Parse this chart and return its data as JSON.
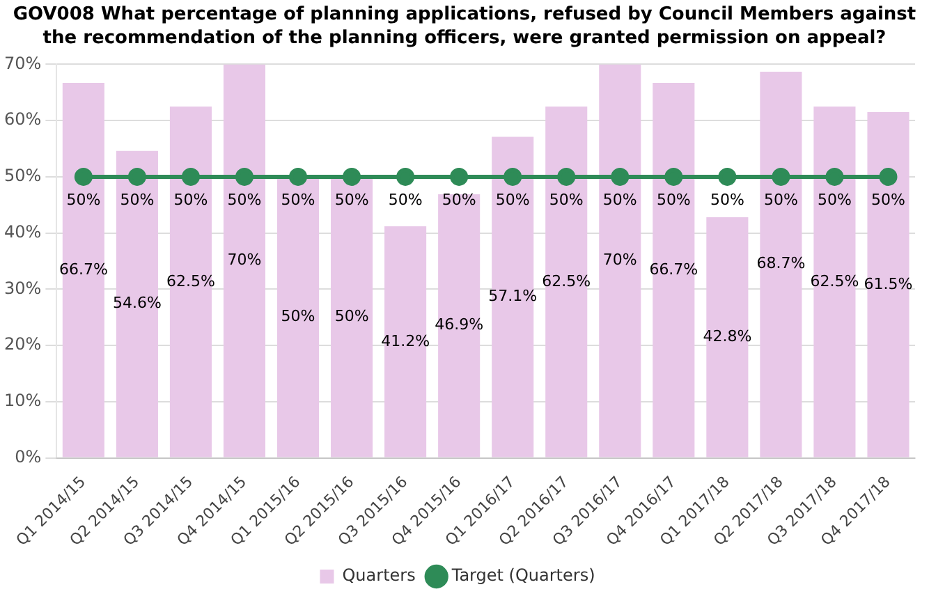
{
  "chart_data": {
    "type": "bar",
    "title": "GOV008 What percentage of planning applications, refused by Council Members against the recommendation of the planning officers, were granted permission on appeal?",
    "categories": [
      "Q1 2014/15",
      "Q2 2014/15",
      "Q3 2014/15",
      "Q4 2014/15",
      "Q1 2015/16",
      "Q2 2015/16",
      "Q3 2015/16",
      "Q4 2015/16",
      "Q1 2016/17",
      "Q2 2016/17",
      "Q3 2016/17",
      "Q4 2016/17",
      "Q1 2017/18",
      "Q2 2017/18",
      "Q3 2017/18",
      "Q4 2017/18"
    ],
    "series": [
      {
        "name": "Quarters",
        "color": "#e8c8e8",
        "values": [
          66.7,
          54.6,
          62.5,
          70,
          50,
          50,
          41.2,
          46.9,
          57.1,
          62.5,
          70,
          66.7,
          42.8,
          68.7,
          62.5,
          61.5
        ],
        "value_labels": [
          "66.7%",
          "54.6%",
          "62.5%",
          "70%",
          "50%",
          "50%",
          "41.2%",
          "46.9%",
          "57.1%",
          "62.5%",
          "70%",
          "66.7%",
          "42.8%",
          "68.7%",
          "62.5%",
          "61.5%"
        ]
      },
      {
        "name": "Target (Quarters)",
        "type": "line",
        "color": "#2e8b57",
        "values": [
          50,
          50,
          50,
          50,
          50,
          50,
          50,
          50,
          50,
          50,
          50,
          50,
          50,
          50,
          50,
          50
        ],
        "value_labels": [
          "50%",
          "50%",
          "50%",
          "50%",
          "50%",
          "50%",
          "50%",
          "50%",
          "50%",
          "50%",
          "50%",
          "50%",
          "50%",
          "50%",
          "50%",
          "50%"
        ]
      }
    ],
    "ylim": [
      0,
      70
    ],
    "yticks": [
      {
        "value": 0,
        "label": "0%"
      },
      {
        "value": 10,
        "label": "10%"
      },
      {
        "value": 20,
        "label": "20%"
      },
      {
        "value": 30,
        "label": "30%"
      },
      {
        "value": 40,
        "label": "40%"
      },
      {
        "value": 50,
        "label": "50%"
      },
      {
        "value": 60,
        "label": "60%"
      },
      {
        "value": 70,
        "label": "70%"
      }
    ],
    "grid": "y",
    "legend": "bottom",
    "marker": "circle",
    "line_style": "solid"
  }
}
